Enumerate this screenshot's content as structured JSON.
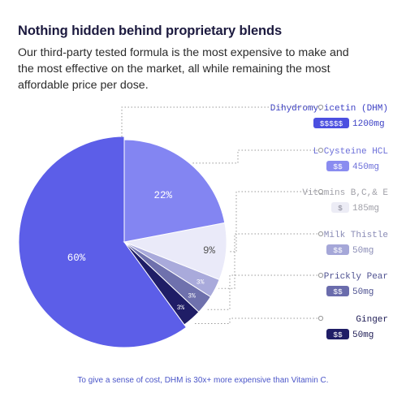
{
  "header": {
    "title": "Nothing hidden behind proprietary blends",
    "description_lines": [
      "Our third-party tested formula is the most expensive to make and",
      "the most effective on the market, all while remaining the most",
      "affordable price per dose."
    ]
  },
  "chart_data": {
    "type": "pie",
    "slices": [
      {
        "label": "60%",
        "value": 60,
        "color": "#5c5ee8",
        "label_color": "#ffffff"
      },
      {
        "label": "22%",
        "value": 22,
        "color": "#8385f2",
        "label_color": "#ffffff"
      },
      {
        "label": "9%",
        "value": 9,
        "color": "#eaeaf9",
        "label_color": "#555555"
      },
      {
        "label": "3%",
        "value": 3,
        "color": "#a9aadb",
        "label_color": "#ffffff"
      },
      {
        "label": "3%",
        "value": 3,
        "color": "#6f71ad",
        "label_color": "#ffffff"
      },
      {
        "label": "3%",
        "value": 3,
        "color": "#1f1d66",
        "label_color": "#ffffff"
      }
    ],
    "legend": [
      {
        "name": "Dihydromyricetin (DHM)",
        "price": "$$$$$",
        "dose": "1200mg",
        "name_color": "#3b3fc4",
        "badge_color": "#4b4fe0",
        "dose_color": "#3b3fc4"
      },
      {
        "name": "L-Cysteine HCL",
        "price": "$$",
        "dose": "450mg",
        "name_color": "#6c6fd9",
        "badge_color": "#8a8cf0",
        "dose_color": "#6c6fd9"
      },
      {
        "name": "Vitamins B,C,& E",
        "price": "$",
        "dose": "185mg",
        "name_color": "#a0a0a8",
        "badge_color": "#ececf5",
        "dose_color": "#a0a0a8",
        "badge_text_color": "#8a8a99"
      },
      {
        "name": "Milk Thistle",
        "price": "$$",
        "dose": "50mg",
        "name_color": "#8a8cb6",
        "badge_color": "#a5a7d8",
        "dose_color": "#8a8cb6"
      },
      {
        "name": "Prickly Pear",
        "price": "$$",
        "dose": "50mg",
        "name_color": "#4f5291",
        "badge_color": "#6a6cac",
        "dose_color": "#4f5291"
      },
      {
        "name": "Ginger",
        "price": "$$",
        "dose": "50mg",
        "name_color": "#1e1c55",
        "badge_color": "#1f1d66",
        "dose_color": "#1e1c55"
      }
    ]
  },
  "footer": {
    "note": "To give a sense of cost, DHM is 30x+ more expensive than Vitamin C."
  }
}
